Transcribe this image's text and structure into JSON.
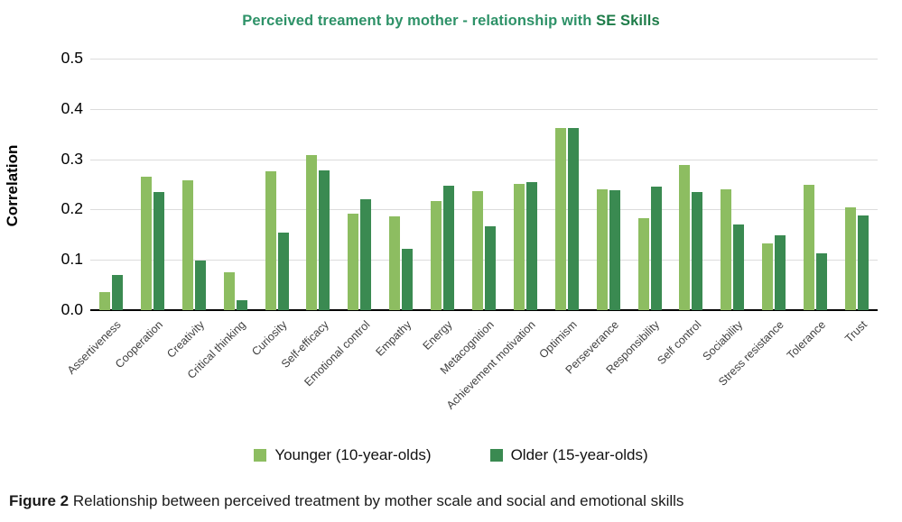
{
  "figure": {
    "caption_prefix": "Figure 2",
    "caption_text": " Relationship between perceived treatment by mother scale and social and emotional skills"
  },
  "chart_data": {
    "type": "bar",
    "title": "Perceived treament by mother - relationship with SE Skills",
    "title_main": "Perceived treament by mother - relationship with ",
    "title_emph": "SE Skills",
    "xlabel": "",
    "ylabel": "Correlation",
    "ylim": [
      0,
      0.5
    ],
    "ytick_labels": [
      "0.5",
      "0.4",
      "0.3",
      "0.2",
      "0.1",
      "0.0"
    ],
    "grid": true,
    "legend_position": "bottom",
    "categories": [
      "Assertiveness",
      "Cooperation",
      "Creativity",
      "Critical thinking",
      "Curiosity",
      "Self-efficacy",
      "Emotional control",
      "Empathy",
      "Energy",
      "Metacognition",
      "Achievement motivation",
      "Optimism",
      "Perseverance",
      "Responsibility",
      "Self control",
      "Sociability",
      "Stress resistance",
      "Tolerance",
      "Trust"
    ],
    "series": [
      {
        "name": "Younger (10-year-olds)",
        "color": "#8dbd61",
        "values": [
          0.035,
          0.265,
          0.258,
          0.076,
          0.276,
          0.308,
          0.192,
          0.186,
          0.216,
          0.236,
          0.251,
          0.362,
          0.241,
          0.182,
          0.289,
          0.241,
          0.132,
          0.249,
          0.204
        ]
      },
      {
        "name": "Older (15-year-olds)",
        "color": "#3a8a51",
        "values": [
          0.07,
          0.234,
          0.098,
          0.02,
          0.154,
          0.278,
          0.221,
          0.121,
          0.248,
          0.167,
          0.255,
          0.362,
          0.238,
          0.246,
          0.235,
          0.17,
          0.148,
          0.113,
          0.189
        ]
      }
    ],
    "colors": {
      "title_green": "#2e9268",
      "title_dark_green": "#1e7c49",
      "younger_bar": "#8dbd61",
      "older_bar": "#3a8a51",
      "gridline": "#dcdcdc",
      "axis": "#000000"
    }
  }
}
